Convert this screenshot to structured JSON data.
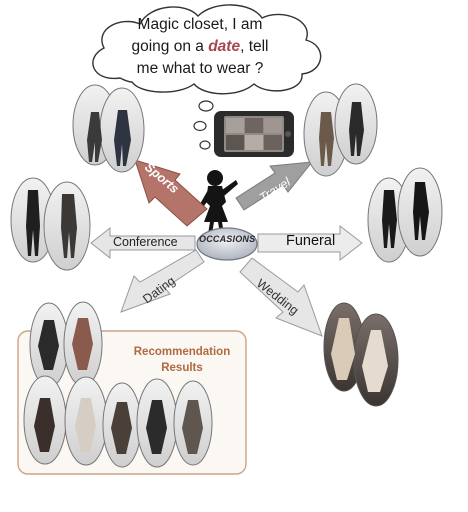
{
  "thought": {
    "line1": "Magic closet, I am",
    "line2_before": "going on a ",
    "line2_emph": "date",
    "line2_after": ", tell",
    "line3": "me what to wear ?"
  },
  "hub": {
    "label": "OCCASIONS"
  },
  "arrows": {
    "sports": "Sports",
    "travel": "Travel",
    "conference": "Conference",
    "funeral": "Funeral",
    "dating": "Dating",
    "wedding": "Wedding"
  },
  "recommendation": {
    "line1": "Recommendation",
    "line2": "Results"
  },
  "colors": {
    "sports_arrow": "#b5746a",
    "travel_arrow": "#9f9f9f",
    "light_arrow": "#e6e6e6",
    "hub": "#c9ced6",
    "result_accent": "#b06a3f",
    "result_border": "#c9a487"
  }
}
